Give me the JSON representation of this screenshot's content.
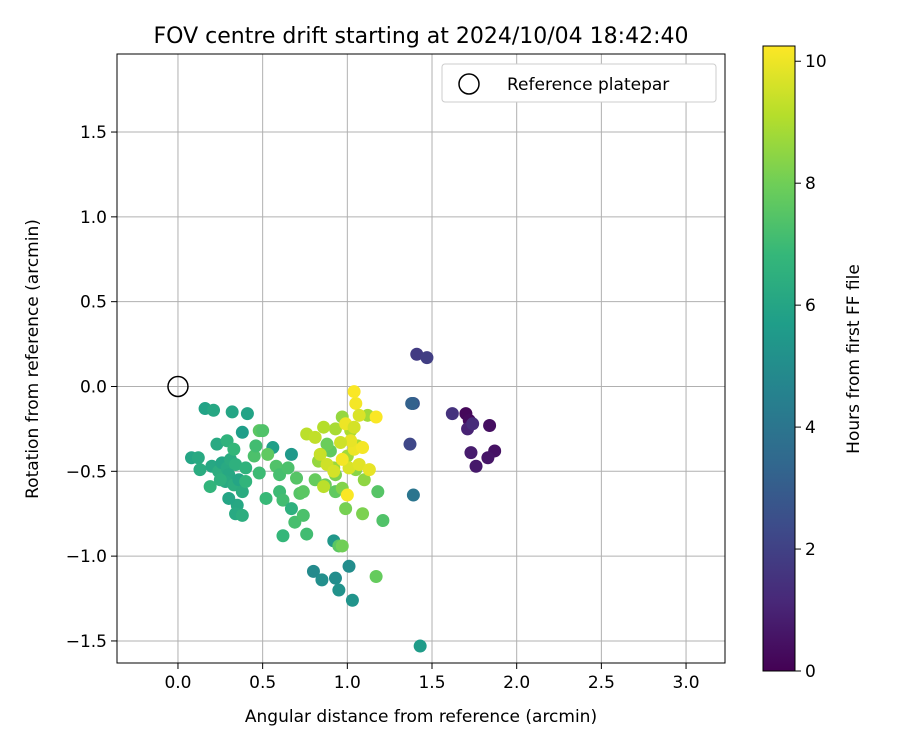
{
  "chart_data": {
    "type": "scatter",
    "title": "FOV centre drift starting at 2024/10/04 18:42:40",
    "xlabel": "Angular distance from reference (arcmin)",
    "ylabel": "Rotation from reference (arcmin)",
    "xlim": [
      -0.36,
      3.23
    ],
    "ylim": [
      -1.63,
      1.96
    ],
    "xticks": [
      "0.0",
      "0.5",
      "1.0",
      "1.5",
      "2.0",
      "2.5",
      "3.0"
    ],
    "xtick_values": [
      0,
      0.5,
      1.0,
      1.5,
      2.0,
      2.5,
      3.0
    ],
    "yticks": [
      "−1.5",
      "−1.0",
      "−0.5",
      "0.0",
      "0.5",
      "1.0",
      "1.5"
    ],
    "ytick_values": [
      -1.5,
      -1.0,
      -0.5,
      0,
      0.5,
      1.0,
      1.5
    ],
    "grid": true,
    "legend": {
      "placement": "top-right",
      "entries": [
        "Reference platepar"
      ]
    },
    "reference": {
      "name": "Reference platepar",
      "x": 0.0,
      "y": 0.0
    },
    "colorbar": {
      "label": "Hours from first FF file",
      "range": [
        0,
        10.25
      ],
      "ticks": [
        "0",
        "2",
        "4",
        "6",
        "8",
        "10"
      ],
      "tick_values": [
        0,
        2,
        4,
        6,
        8,
        10
      ],
      "colormap": "viridis",
      "stops": [
        "#440154",
        "#482878",
        "#3e4989",
        "#31688e",
        "#26828e",
        "#1f9e89",
        "#35b779",
        "#6ece58",
        "#b5de2b",
        "#fde725"
      ]
    },
    "points": [
      [
        1.7,
        -0.16,
        0.2
      ],
      [
        1.72,
        -0.2,
        0.3
      ],
      [
        1.84,
        -0.23,
        0.4
      ],
      [
        1.87,
        -0.38,
        0.5
      ],
      [
        1.83,
        -0.42,
        0.6
      ],
      [
        1.76,
        -0.47,
        0.7
      ],
      [
        1.73,
        -0.39,
        0.8
      ],
      [
        1.71,
        -0.25,
        1.0
      ],
      [
        1.74,
        -0.22,
        1.3
      ],
      [
        1.62,
        -0.16,
        1.5
      ],
      [
        1.41,
        0.19,
        1.8
      ],
      [
        1.47,
        0.17,
        1.9
      ],
      [
        1.37,
        -0.34,
        2.2
      ],
      [
        1.39,
        -0.1,
        2.8
      ],
      [
        1.38,
        -0.1,
        3.2
      ],
      [
        1.39,
        -0.64,
        4.0
      ],
      [
        0.8,
        -1.09,
        4.9
      ],
      [
        0.85,
        -1.14,
        5.1
      ],
      [
        0.93,
        -1.13,
        5.0
      ],
      [
        0.95,
        -1.2,
        5.2
      ],
      [
        1.03,
        -1.26,
        5.3
      ],
      [
        1.01,
        -1.06,
        5.0
      ],
      [
        0.92,
        -0.91,
        5.4
      ],
      [
        1.43,
        -1.53,
        5.6
      ],
      [
        0.67,
        -0.4,
        5.5
      ],
      [
        0.56,
        -0.36,
        5.8
      ],
      [
        0.38,
        -0.27,
        5.7
      ],
      [
        0.41,
        -0.16,
        5.9
      ],
      [
        0.32,
        -0.15,
        6.0
      ],
      [
        0.16,
        -0.13,
        5.9
      ],
      [
        0.21,
        -0.14,
        6.1
      ],
      [
        0.08,
        -0.42,
        6.0
      ],
      [
        0.12,
        -0.42,
        6.2
      ],
      [
        0.13,
        -0.49,
        6.3
      ],
      [
        0.2,
        -0.47,
        6.1
      ],
      [
        0.24,
        -0.5,
        6.4
      ],
      [
        0.26,
        -0.45,
        6.0
      ],
      [
        0.29,
        -0.48,
        6.2
      ],
      [
        0.31,
        -0.43,
        6.3
      ],
      [
        0.34,
        -0.46,
        6.5
      ],
      [
        0.3,
        -0.52,
        6.1
      ],
      [
        0.28,
        -0.56,
        6.2
      ],
      [
        0.33,
        -0.58,
        6.4
      ],
      [
        0.36,
        -0.55,
        6.0
      ],
      [
        0.4,
        -0.48,
        6.6
      ],
      [
        0.38,
        -0.62,
        6.3
      ],
      [
        0.35,
        -0.7,
        6.1
      ],
      [
        0.34,
        -0.75,
        6.2
      ],
      [
        0.38,
        -0.76,
        6.4
      ],
      [
        0.3,
        -0.66,
        6.0
      ],
      [
        0.25,
        -0.55,
        6.5
      ],
      [
        0.19,
        -0.59,
        6.7
      ],
      [
        0.23,
        -0.34,
        6.2
      ],
      [
        0.29,
        -0.32,
        6.6
      ],
      [
        0.33,
        -0.37,
        6.8
      ],
      [
        0.4,
        -0.56,
        6.7
      ],
      [
        0.48,
        -0.51,
        7.0
      ],
      [
        0.52,
        -0.66,
        6.9
      ],
      [
        0.6,
        -0.62,
        7.0
      ],
      [
        0.62,
        -0.67,
        7.1
      ],
      [
        0.67,
        -0.72,
        6.5
      ],
      [
        0.69,
        -0.8,
        7.2
      ],
      [
        0.74,
        -0.76,
        7.3
      ],
      [
        0.76,
        -0.87,
        7.1
      ],
      [
        0.62,
        -0.88,
        6.8
      ],
      [
        0.72,
        -0.63,
        7.5
      ],
      [
        0.74,
        -0.62,
        7.6
      ],
      [
        0.58,
        -0.47,
        7.4
      ],
      [
        0.6,
        -0.52,
        7.2
      ],
      [
        0.45,
        -0.41,
        7.3
      ],
      [
        0.48,
        -0.26,
        7.6
      ],
      [
        0.5,
        -0.26,
        7.4
      ],
      [
        0.46,
        -0.35,
        7.1
      ],
      [
        0.53,
        -0.4,
        7.7
      ],
      [
        0.65,
        -0.48,
        7.3
      ],
      [
        0.7,
        -0.54,
        7.5
      ],
      [
        0.81,
        -0.55,
        7.8
      ],
      [
        0.87,
        -0.58,
        7.9
      ],
      [
        0.93,
        -0.62,
        7.7
      ],
      [
        0.95,
        -0.94,
        7.6
      ],
      [
        0.97,
        -0.94,
        8.0
      ],
      [
        0.99,
        -0.72,
        8.1
      ],
      [
        1.09,
        -0.75,
        8.2
      ],
      [
        1.18,
        -0.62,
        7.5
      ],
      [
        1.21,
        -0.79,
        7.4
      ],
      [
        1.17,
        -1.12,
        7.8
      ],
      [
        0.9,
        -0.38,
        7.7
      ],
      [
        0.88,
        -0.34,
        7.9
      ],
      [
        0.93,
        -0.52,
        8.2
      ],
      [
        0.97,
        -0.6,
        8.3
      ],
      [
        1.05,
        -0.49,
        8.4
      ],
      [
        1.1,
        -0.55,
        8.5
      ],
      [
        0.83,
        -0.44,
        8.6
      ],
      [
        0.92,
        -0.48,
        8.7
      ],
      [
        1.0,
        -0.41,
        8.8
      ],
      [
        1.06,
        -0.35,
        8.9
      ],
      [
        1.12,
        -0.17,
        8.8
      ],
      [
        0.97,
        -0.18,
        8.6
      ],
      [
        0.93,
        -0.25,
        8.9
      ],
      [
        1.02,
        -0.26,
        9.0
      ],
      [
        0.86,
        -0.24,
        9.1
      ],
      [
        0.76,
        -0.28,
        9.2
      ],
      [
        0.81,
        -0.3,
        9.3
      ],
      [
        0.84,
        -0.4,
        9.4
      ],
      [
        0.88,
        -0.46,
        9.5
      ],
      [
        0.86,
        -0.59,
        9.2
      ],
      [
        0.92,
        -0.5,
        9.6
      ],
      [
        1.01,
        -0.48,
        9.7
      ],
      [
        1.07,
        -0.46,
        9.8
      ],
      [
        1.13,
        -0.49,
        9.9
      ],
      [
        1.04,
        -0.37,
        10.0
      ],
      [
        1.09,
        -0.36,
        10.1
      ],
      [
        1.17,
        -0.18,
        10.2
      ],
      [
        1.05,
        -0.1,
        10.1
      ],
      [
        1.04,
        -0.03,
        10.2
      ],
      [
        0.99,
        -0.22,
        10.0
      ],
      [
        1.02,
        -0.32,
        9.9
      ],
      [
        0.97,
        -0.43,
        10.1
      ],
      [
        1.0,
        -0.64,
        10.2
      ],
      [
        1.04,
        -0.24,
        9.6
      ],
      [
        0.96,
        -0.33,
        9.5
      ],
      [
        1.07,
        -0.17,
        9.7
      ]
    ]
  }
}
